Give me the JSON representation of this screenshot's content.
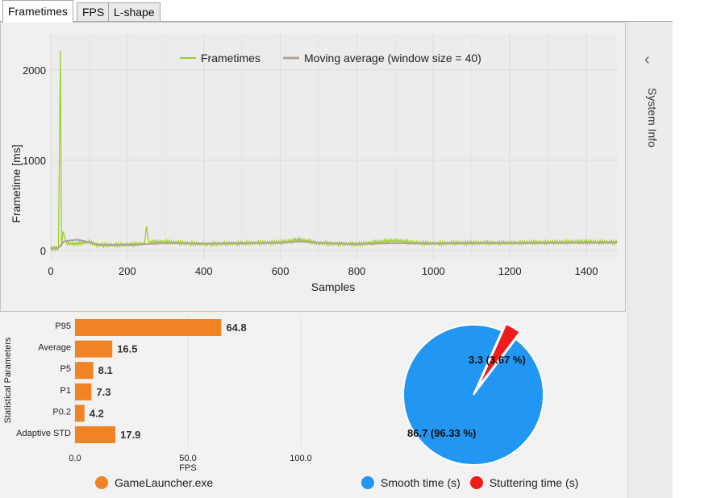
{
  "tabs": [
    {
      "label": "Frametimes",
      "active": true
    },
    {
      "label": "FPS",
      "active": false
    },
    {
      "label": "L-shape",
      "active": false
    }
  ],
  "sidebar": {
    "label": "System Info",
    "toggle_icon": "chevron-left-icon"
  },
  "frametime_chart": {
    "legend": {
      "series1": "Frametimes",
      "series2": "Moving average (window size = 40)"
    },
    "ylabel": "Frametime [ms]",
    "xlabel": "Samples",
    "yticks": [
      "0",
      "1000",
      "2000"
    ],
    "xticks": [
      "0",
      "200",
      "400",
      "600",
      "800",
      "1000",
      "1200",
      "1400"
    ]
  },
  "stats_chart": {
    "ylabel": "Statistical Parameters",
    "xlabel": "FPS",
    "xticks": [
      "0.0",
      "50.0",
      "100.0"
    ],
    "legend": "GameLauncher.exe"
  },
  "pie_chart": {
    "label_smooth": "86.7 (96.33 %)",
    "label_stutter": "3.3 (3.67 %)",
    "legend_smooth": "Smooth time (s)",
    "legend_stutter": "Stuttering time (s)"
  },
  "colors": {
    "frametimes": "#9acd1e",
    "moving_average": "#b0a09a",
    "bars": "#f08324",
    "smooth": "#2196f3",
    "stutter": "#f01c1c"
  },
  "chart_data": [
    {
      "type": "line",
      "title": "",
      "xlabel": "Samples",
      "ylabel": "Frametime [ms]",
      "xlim": [
        0,
        1480
      ],
      "ylim": [
        -100,
        2400
      ],
      "grid": true,
      "legend_position": "top",
      "series": [
        {
          "name": "Frametimes",
          "x": [
            0,
            20,
            25,
            28,
            32,
            40,
            60,
            100,
            120,
            200,
            245,
            250,
            255,
            300,
            400,
            500,
            600,
            650,
            700,
            800,
            900,
            950,
            1000,
            1100,
            1200,
            1300,
            1400,
            1480
          ],
          "y": [
            20,
            25,
            2220,
            40,
            210,
            80,
            70,
            95,
            60,
            65,
            75,
            270,
            90,
            95,
            70,
            80,
            90,
            120,
            80,
            70,
            110,
            85,
            80,
            85,
            85,
            90,
            95,
            90
          ]
        },
        {
          "name": "Moving average (window size = 40)",
          "x": [
            0,
            20,
            35,
            50,
            70,
            100,
            130,
            200,
            250,
            300,
            400,
            500,
            600,
            650,
            700,
            800,
            900,
            1000,
            1100,
            1200,
            1300,
            1400,
            1480
          ],
          "y": [
            20,
            30,
            100,
            110,
            120,
            90,
            60,
            60,
            70,
            80,
            75,
            80,
            85,
            100,
            85,
            70,
            80,
            75,
            80,
            80,
            82,
            85,
            85
          ]
        }
      ]
    },
    {
      "type": "bar",
      "orientation": "horizontal",
      "xlabel": "FPS",
      "ylabel": "Statistical Parameters",
      "xlim": [
        0,
        100
      ],
      "categories": [
        "P95",
        "Average",
        "P5",
        "P1",
        "P0.2",
        "Adaptive STD"
      ],
      "series": [
        {
          "name": "GameLauncher.exe",
          "values": [
            64.8,
            16.5,
            8.1,
            7.3,
            4.2,
            17.9
          ]
        }
      ]
    },
    {
      "type": "pie",
      "categories": [
        "Smooth time (s)",
        "Stuttering time (s)"
      ],
      "values": [
        86.7,
        3.3
      ],
      "labels": [
        "86.7 (96.33 %)",
        "3.3 (3.67 %)"
      ]
    }
  ]
}
